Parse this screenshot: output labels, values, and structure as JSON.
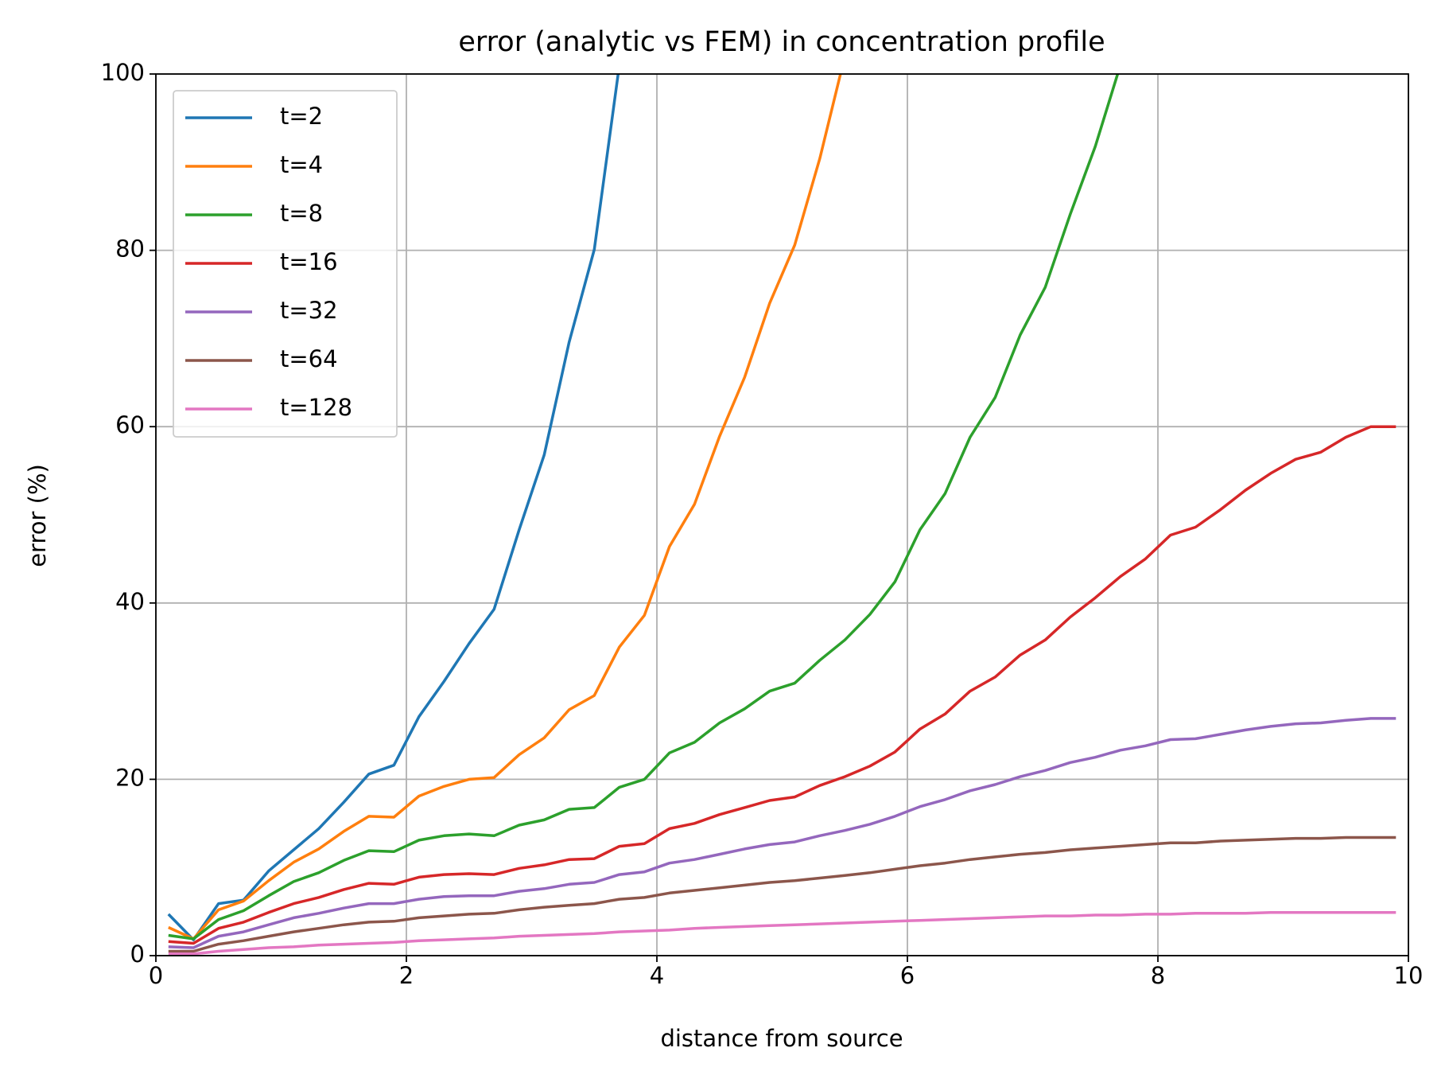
{
  "chart_data": {
    "type": "line",
    "title": "error (analytic vs FEM) in concentration profile",
    "xlabel": "distance from source",
    "ylabel": "error (%)",
    "x": [
      0.1,
      0.3,
      0.5,
      0.7,
      0.9,
      1.1,
      1.3,
      1.5,
      1.7,
      1.9,
      2.1,
      2.3,
      2.5,
      2.7,
      2.9,
      3.1,
      3.3,
      3.5,
      3.7,
      3.9,
      4.1,
      4.3,
      4.5,
      4.7,
      4.9,
      5.1,
      5.3,
      5.5,
      5.7,
      5.9,
      6.1,
      6.3,
      6.5,
      6.7,
      6.9,
      7.1,
      7.3,
      7.5,
      7.7,
      7.9,
      8.1,
      8.3,
      8.5,
      8.7,
      8.9,
      9.1,
      9.3,
      9.5,
      9.7,
      9.9
    ],
    "series": [
      {
        "name": "t=2",
        "color": "#1f77b4",
        "values": [
          4.7,
          1.8,
          5.9,
          6.3,
          9.6,
          12,
          14.4,
          17.4,
          20.6,
          21.6,
          27.1,
          31.1,
          35.4,
          39.3,
          48.3,
          56.8,
          69.6,
          80.1,
          101,
          null,
          null,
          null,
          null,
          null,
          null,
          null,
          null,
          null,
          null,
          null,
          null,
          null,
          null,
          null,
          null,
          null,
          null,
          null,
          null,
          null,
          null,
          null,
          null,
          null,
          null,
          null,
          null,
          null,
          null,
          null
        ]
      },
      {
        "name": "t=4",
        "color": "#ff7f0e",
        "values": [
          3.2,
          1.9,
          5.2,
          6.2,
          8.5,
          10.6,
          12.1,
          14.1,
          15.8,
          15.7,
          18.1,
          19.2,
          20.0,
          20.2,
          22.8,
          24.7,
          27.9,
          29.5,
          35.0,
          38.6,
          46.4,
          51.2,
          58.9,
          65.6,
          74.0,
          80.6,
          90.4,
          102,
          null,
          null,
          null,
          null,
          null,
          null,
          null,
          null,
          null,
          null,
          null,
          null,
          null,
          null,
          null,
          null,
          null,
          null,
          null,
          null,
          null,
          null
        ]
      },
      {
        "name": "t=8",
        "color": "#2ca02c",
        "values": [
          2.3,
          1.9,
          4.1,
          5.1,
          6.8,
          8.4,
          9.4,
          10.8,
          11.9,
          11.8,
          13.1,
          13.6,
          13.8,
          13.6,
          14.8,
          15.4,
          16.6,
          16.8,
          19.1,
          20.0,
          23.0,
          24.2,
          26.4,
          28.0,
          30.0,
          30.9,
          33.5,
          35.8,
          38.7,
          42.4,
          48.3,
          52.4,
          58.8,
          63.3,
          70.4,
          75.8,
          84.1,
          91.8,
          101,
          null,
          null,
          null,
          null,
          null,
          null,
          null,
          null,
          null,
          null,
          null
        ]
      },
      {
        "name": "t=16",
        "color": "#d62728",
        "values": [
          1.6,
          1.4,
          3.1,
          3.8,
          4.9,
          5.9,
          6.6,
          7.5,
          8.2,
          8.1,
          8.9,
          9.2,
          9.3,
          9.2,
          9.9,
          10.3,
          10.9,
          11.0,
          12.4,
          12.7,
          14.4,
          15.0,
          16.0,
          16.8,
          17.6,
          18.0,
          19.3,
          20.3,
          21.5,
          23.1,
          25.7,
          27.4,
          30.0,
          31.6,
          34.1,
          35.8,
          38.4,
          40.6,
          43.0,
          45.0,
          47.7,
          48.6,
          50.6,
          52.8,
          54.7,
          56.3,
          57.1,
          58.8,
          60.0,
          60.0
        ]
      },
      {
        "name": "t=32",
        "color": "#9467bd",
        "values": [
          1.0,
          0.9,
          2.2,
          2.7,
          3.5,
          4.3,
          4.8,
          5.4,
          5.9,
          5.9,
          6.4,
          6.7,
          6.8,
          6.8,
          7.3,
          7.6,
          8.1,
          8.3,
          9.2,
          9.5,
          10.5,
          10.9,
          11.5,
          12.1,
          12.6,
          12.9,
          13.6,
          14.2,
          14.9,
          15.8,
          16.9,
          17.7,
          18.7,
          19.4,
          20.3,
          21.0,
          21.9,
          22.5,
          23.3,
          23.8,
          24.5,
          24.6,
          25.1,
          25.6,
          26.0,
          26.3,
          26.4,
          26.7,
          26.9,
          26.9
        ]
      },
      {
        "name": "t=64",
        "color": "#8c564b",
        "values": [
          0.5,
          0.5,
          1.3,
          1.7,
          2.2,
          2.7,
          3.1,
          3.5,
          3.8,
          3.9,
          4.3,
          4.5,
          4.7,
          4.8,
          5.2,
          5.5,
          5.7,
          5.9,
          6.4,
          6.6,
          7.1,
          7.4,
          7.7,
          8.0,
          8.3,
          8.5,
          8.8,
          9.1,
          9.4,
          9.8,
          10.2,
          10.5,
          10.9,
          11.2,
          11.5,
          11.7,
          12.0,
          12.2,
          12.4,
          12.6,
          12.8,
          12.8,
          13.0,
          13.1,
          13.2,
          13.3,
          13.3,
          13.4,
          13.4,
          13.4
        ]
      },
      {
        "name": "t=128",
        "color": "#e377c2",
        "values": [
          0.2,
          0.2,
          0.5,
          0.7,
          0.9,
          1.0,
          1.2,
          1.3,
          1.4,
          1.5,
          1.7,
          1.8,
          1.9,
          2.0,
          2.2,
          2.3,
          2.4,
          2.5,
          2.7,
          2.8,
          2.9,
          3.1,
          3.2,
          3.3,
          3.4,
          3.5,
          3.6,
          3.7,
          3.8,
          3.9,
          4.0,
          4.1,
          4.2,
          4.3,
          4.4,
          4.5,
          4.5,
          4.6,
          4.6,
          4.7,
          4.7,
          4.8,
          4.8,
          4.8,
          4.9,
          4.9,
          4.9,
          4.9,
          4.9,
          4.9
        ]
      }
    ],
    "xlim": [
      0,
      10
    ],
    "xticks": [
      0,
      2,
      4,
      6,
      8,
      10
    ],
    "ylim": [
      0,
      100
    ],
    "yticks": [
      0,
      20,
      40,
      60,
      80,
      100
    ],
    "grid": true,
    "legend": "upper left"
  }
}
